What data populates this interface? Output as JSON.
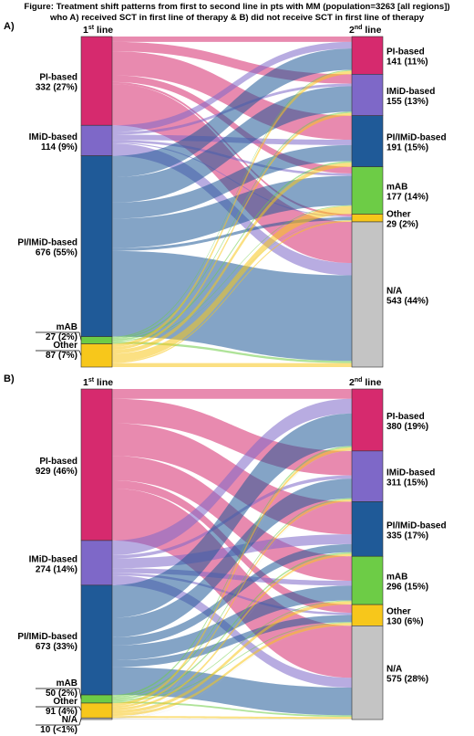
{
  "figure": {
    "title_line1": "Figure: Treatment shift patterns from first to second line in pts with MM (population=3263 [all regions])",
    "title_line2": "who A) received SCT in first line of therapy & B) did not receive SCT in first line of therapy"
  },
  "header_labels": {
    "first_prefix": "1",
    "first_sup": "st",
    "first_suffix": " line",
    "second_prefix": "2",
    "second_sup": "nd",
    "second_suffix": " line"
  },
  "colors": {
    "PI-based": "#d62a6e",
    "IMiD-based": "#7e68c8",
    "PI/IMiD-based": "#1f5a98",
    "mAB": "#6dcc46",
    "Other": "#f7c71b",
    "N/A": "#c4c4c4"
  },
  "chart_data": [
    {
      "type": "sankey",
      "panel": "A)",
      "source_nodes": [
        {
          "key": "PI-based",
          "name": "PI-based",
          "value_text": "332 (27%)"
        },
        {
          "key": "IMiD-based",
          "name": "IMiD-based",
          "value_text": "114 (9%)"
        },
        {
          "key": "PI/IMiD-based",
          "name": "PI/IMiD-based",
          "value_text": "676 (55%)"
        },
        {
          "key": "mAB",
          "name": "mAB",
          "value_text": "27 (2%)"
        },
        {
          "key": "Other",
          "name": "Other",
          "value_text": "87 (7%)"
        }
      ],
      "target_nodes": [
        {
          "key": "PI-based",
          "name": "PI-based",
          "value_text": "141 (11%)"
        },
        {
          "key": "IMiD-based",
          "name": "IMiD-based",
          "value_text": "155 (13%)"
        },
        {
          "key": "PI/IMiD-based",
          "name": "PI/IMiD-based",
          "value_text": "191 (15%)"
        },
        {
          "key": "mAB",
          "name": "mAB",
          "value_text": "177 (14%)"
        },
        {
          "key": "Other",
          "name": "Other",
          "value_text": "29 (2%)"
        },
        {
          "key": "N/A",
          "name": "N/A",
          "value_text": "543 (44%)"
        }
      ],
      "source_values": [
        332,
        114,
        676,
        27,
        87
      ],
      "target_values": [
        141,
        155,
        191,
        177,
        29,
        543
      ],
      "flows": [
        {
          "from": "PI-based",
          "to": "PI-based",
          "value": 20
        },
        {
          "from": "PI-based",
          "to": "IMiD-based",
          "value": 35
        },
        {
          "from": "PI-based",
          "to": "PI/IMiD-based",
          "value": 90
        },
        {
          "from": "PI-based",
          "to": "mAB",
          "value": 25
        },
        {
          "from": "PI-based",
          "to": "Other",
          "value": 8
        },
        {
          "from": "PI-based",
          "to": "N/A",
          "value": 154
        },
        {
          "from": "IMiD-based",
          "to": "PI-based",
          "value": 25
        },
        {
          "from": "IMiD-based",
          "to": "IMiD-based",
          "value": 10
        },
        {
          "from": "IMiD-based",
          "to": "PI/IMiD-based",
          "value": 20
        },
        {
          "from": "IMiD-based",
          "to": "mAB",
          "value": 9
        },
        {
          "from": "IMiD-based",
          "to": "Other",
          "value": 4
        },
        {
          "from": "IMiD-based",
          "to": "N/A",
          "value": 46
        },
        {
          "from": "PI/IMiD-based",
          "to": "PI-based",
          "value": 80
        },
        {
          "from": "PI/IMiD-based",
          "to": "IMiD-based",
          "value": 95
        },
        {
          "from": "PI/IMiD-based",
          "to": "PI/IMiD-based",
          "value": 60
        },
        {
          "from": "PI/IMiD-based",
          "to": "mAB",
          "value": 110
        },
        {
          "from": "PI/IMiD-based",
          "to": "Other",
          "value": 11
        },
        {
          "from": "PI/IMiD-based",
          "to": "N/A",
          "value": 320
        },
        {
          "from": "mAB",
          "to": "PI-based",
          "value": 4
        },
        {
          "from": "mAB",
          "to": "IMiD-based",
          "value": 5
        },
        {
          "from": "mAB",
          "to": "PI/IMiD-based",
          "value": 6
        },
        {
          "from": "mAB",
          "to": "mAB",
          "value": 3
        },
        {
          "from": "mAB",
          "to": "Other",
          "value": 1
        },
        {
          "from": "mAB",
          "to": "N/A",
          "value": 8
        },
        {
          "from": "Other",
          "to": "PI-based",
          "value": 12
        },
        {
          "from": "Other",
          "to": "IMiD-based",
          "value": 10
        },
        {
          "from": "Other",
          "to": "PI/IMiD-based",
          "value": 15
        },
        {
          "from": "Other",
          "to": "mAB",
          "value": 30
        },
        {
          "from": "Other",
          "to": "Other",
          "value": 5
        },
        {
          "from": "Other",
          "to": "N/A",
          "value": 15
        }
      ]
    },
    {
      "type": "sankey",
      "panel": "B)",
      "source_nodes": [
        {
          "key": "PI-based",
          "name": "PI-based",
          "value_text": "929 (46%)"
        },
        {
          "key": "IMiD-based",
          "name": "IMiD-based",
          "value_text": "274 (14%)"
        },
        {
          "key": "PI/IMiD-based",
          "name": "PI/IMiD-based",
          "value_text": "673 (33%)"
        },
        {
          "key": "mAB",
          "name": "mAB",
          "value_text": "50 (2%)"
        },
        {
          "key": "Other",
          "name": "Other",
          "value_text": "91 (4%)"
        },
        {
          "key": "N/A",
          "name": "N/A",
          "value_text": "10 (<1%)"
        }
      ],
      "target_nodes": [
        {
          "key": "PI-based",
          "name": "PI-based",
          "value_text": "380 (19%)"
        },
        {
          "key": "IMiD-based",
          "name": "IMiD-based",
          "value_text": "311 (15%)"
        },
        {
          "key": "PI/IMiD-based",
          "name": "PI/IMiD-based",
          "value_text": "335 (17%)"
        },
        {
          "key": "mAB",
          "name": "mAB",
          "value_text": "296 (15%)"
        },
        {
          "key": "Other",
          "name": "Other",
          "value_text": "130 (6%)"
        },
        {
          "key": "N/A",
          "name": "N/A",
          "value_text": "575 (28%)"
        }
      ],
      "source_values": [
        929,
        274,
        673,
        50,
        91,
        10
      ],
      "target_values": [
        380,
        311,
        335,
        296,
        130,
        575
      ],
      "flows": [
        {
          "from": "PI-based",
          "to": "PI-based",
          "value": 60
        },
        {
          "from": "PI-based",
          "to": "IMiD-based",
          "value": 150
        },
        {
          "from": "PI-based",
          "to": "PI/IMiD-based",
          "value": 200
        },
        {
          "from": "PI-based",
          "to": "mAB",
          "value": 150
        },
        {
          "from": "PI-based",
          "to": "Other",
          "value": 50
        },
        {
          "from": "PI-based",
          "to": "N/A",
          "value": 319
        },
        {
          "from": "IMiD-based",
          "to": "PI-based",
          "value": 90
        },
        {
          "from": "IMiD-based",
          "to": "IMiD-based",
          "value": 20
        },
        {
          "from": "IMiD-based",
          "to": "PI/IMiD-based",
          "value": 60
        },
        {
          "from": "IMiD-based",
          "to": "mAB",
          "value": 30
        },
        {
          "from": "IMiD-based",
          "to": "Other",
          "value": 14
        },
        {
          "from": "IMiD-based",
          "to": "N/A",
          "value": 60
        },
        {
          "from": "PI/IMiD-based",
          "to": "PI-based",
          "value": 200
        },
        {
          "from": "PI/IMiD-based",
          "to": "IMiD-based",
          "value": 120
        },
        {
          "from": "PI/IMiD-based",
          "to": "PI/IMiD-based",
          "value": 50
        },
        {
          "from": "PI/IMiD-based",
          "to": "mAB",
          "value": 90
        },
        {
          "from": "PI/IMiD-based",
          "to": "Other",
          "value": 43
        },
        {
          "from": "PI/IMiD-based",
          "to": "N/A",
          "value": 170
        },
        {
          "from": "mAB",
          "to": "PI-based",
          "value": 10
        },
        {
          "from": "mAB",
          "to": "IMiD-based",
          "value": 8
        },
        {
          "from": "mAB",
          "to": "PI/IMiD-based",
          "value": 10
        },
        {
          "from": "mAB",
          "to": "mAB",
          "value": 6
        },
        {
          "from": "mAB",
          "to": "Other",
          "value": 6
        },
        {
          "from": "mAB",
          "to": "N/A",
          "value": 10
        },
        {
          "from": "Other",
          "to": "PI-based",
          "value": 18
        },
        {
          "from": "Other",
          "to": "IMiD-based",
          "value": 12
        },
        {
          "from": "Other",
          "to": "PI/IMiD-based",
          "value": 14
        },
        {
          "from": "Other",
          "to": "mAB",
          "value": 19
        },
        {
          "from": "Other",
          "to": "Other",
          "value": 16
        },
        {
          "from": "Other",
          "to": "N/A",
          "value": 12
        },
        {
          "from": "N/A",
          "to": "PI-based",
          "value": 2
        },
        {
          "from": "N/A",
          "to": "IMiD-based",
          "value": 1
        },
        {
          "from": "N/A",
          "to": "PI/IMiD-based",
          "value": 1
        },
        {
          "from": "N/A",
          "to": "mAB",
          "value": 1
        },
        {
          "from": "N/A",
          "to": "Other",
          "value": 1
        },
        {
          "from": "N/A",
          "to": "N/A",
          "value": 4
        }
      ]
    }
  ]
}
